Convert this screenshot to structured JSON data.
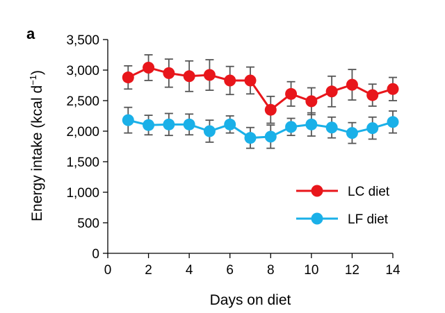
{
  "chart_data": {
    "type": "line",
    "panel_label": "a",
    "xlabel": "Days on diet",
    "ylabel_main": "Energy intake (kcal d",
    "ylabel_sup": "−1",
    "ylabel_end": ")",
    "xlim": [
      0,
      14
    ],
    "ylim": [
      0,
      3500
    ],
    "xticks": [
      0,
      2,
      4,
      6,
      8,
      10,
      12,
      14
    ],
    "xtick_labels": [
      "0",
      "2",
      "4",
      "6",
      "8",
      "10",
      "12",
      "14"
    ],
    "yticks": [
      0,
      500,
      1000,
      1500,
      2000,
      2500,
      3000,
      3500
    ],
    "ytick_labels": [
      "0",
      "500",
      "1,000",
      "1,500",
      "2,000",
      "2,500",
      "3,000",
      "3,500"
    ],
    "grid": false,
    "legend_position": "bottom-right",
    "x": [
      1,
      2,
      3,
      4,
      5,
      6,
      7,
      8,
      9,
      10,
      11,
      12,
      13,
      14
    ],
    "series": [
      {
        "name": "LC diet",
        "color": "#e8161b",
        "values": [
          2880,
          3040,
          2950,
          2900,
          2920,
          2830,
          2830,
          2350,
          2610,
          2490,
          2650,
          2760,
          2590,
          2690
        ],
        "errors": [
          190,
          210,
          230,
          250,
          250,
          230,
          220,
          220,
          200,
          220,
          250,
          250,
          180,
          190
        ]
      },
      {
        "name": "LF diet",
        "color": "#1ab0e8",
        "values": [
          2180,
          2100,
          2110,
          2110,
          2000,
          2110,
          1890,
          1910,
          2070,
          2110,
          2060,
          1970,
          2050,
          2150
        ],
        "errors": [
          210,
          160,
          180,
          170,
          180,
          140,
          170,
          190,
          140,
          190,
          170,
          170,
          180,
          180
        ]
      }
    ]
  }
}
